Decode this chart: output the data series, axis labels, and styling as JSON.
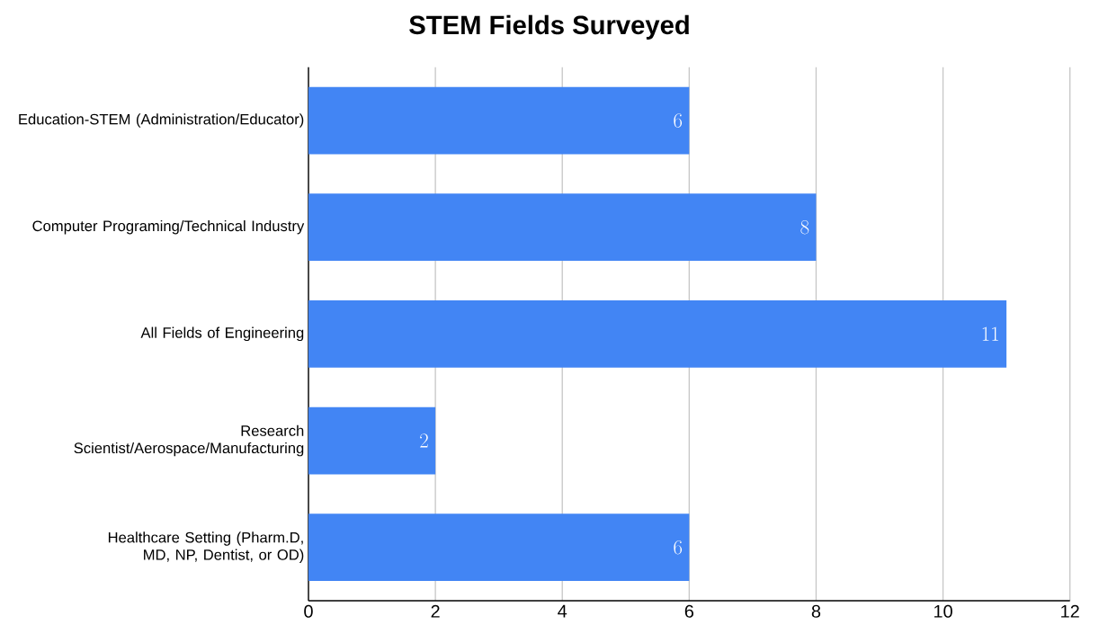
{
  "chart_data": {
    "type": "bar",
    "orientation": "horizontal",
    "title": "STEM Fields Surveyed",
    "categories": [
      "Education-STEM (Administration/Educator)",
      "Computer Programing/Technical Industry",
      "All Fields of Engineering",
      "Research Scientist/Aerospace/Manufacturing",
      "Healthcare Setting (Pharm.D, MD, NP, Dentist, or OD)"
    ],
    "values": [
      6,
      8,
      11,
      2,
      6
    ],
    "color": "#4285f4",
    "xlim": [
      0,
      12
    ],
    "xticks": [
      0,
      2,
      4,
      6,
      8,
      10,
      12
    ],
    "grid": "x",
    "data_labels": true
  }
}
